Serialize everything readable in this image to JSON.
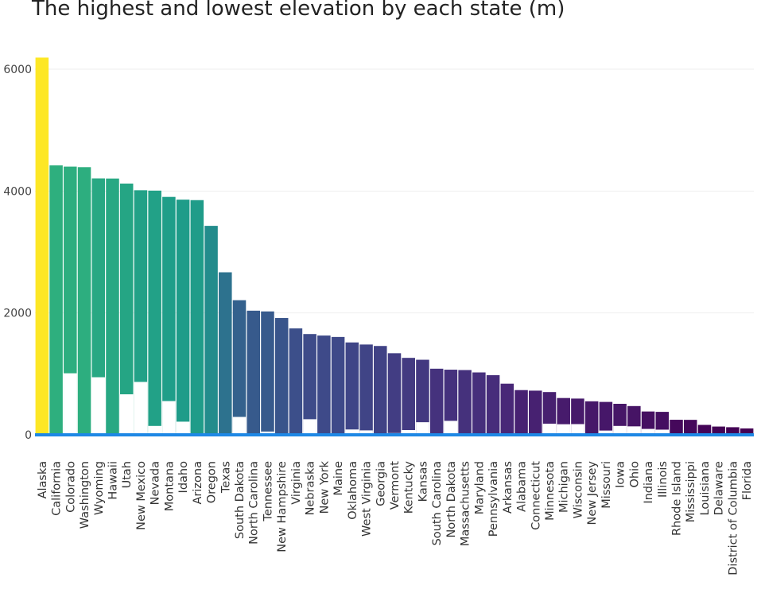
{
  "chart_data": {
    "type": "bar",
    "title": "The highest and lowest elevation by each state (m)",
    "xlabel": "",
    "ylabel": "",
    "ylim": [
      0,
      6200
    ],
    "yticks": [
      0,
      2000,
      4000,
      6000
    ],
    "grid": true,
    "legend": "none",
    "colorscale": "viridis",
    "zero_line_color": "#1e88e5",
    "categories": [
      "Alaska",
      "California",
      "Colorado",
      "Washington",
      "Wyoming",
      "Hawaii",
      "Utah",
      "New Mexico",
      "Nevada",
      "Montana",
      "Idaho",
      "Arizona",
      "Oregon",
      "Texas",
      "South Dakota",
      "North Carolina",
      "Tennessee",
      "New Hampshire",
      "Virginia",
      "Nebraska",
      "New York",
      "Maine",
      "Oklahoma",
      "West Virginia",
      "Georgia",
      "Vermont",
      "Kentucky",
      "Kansas",
      "South Carolina",
      "North Dakota",
      "Massachusetts",
      "Maryland",
      "Pennsylvania",
      "Arkansas",
      "Alabama",
      "Connecticut",
      "Minnesota",
      "Michigan",
      "Wisconsin",
      "New Jersey",
      "Missouri",
      "Iowa",
      "Ohio",
      "Indiana",
      "Illinois",
      "Rhode Island",
      "Mississippi",
      "Louisiana",
      "Delaware",
      "District of Columbia",
      "Florida"
    ],
    "series": [
      {
        "values": [
          6190,
          4421,
          4401,
          4392,
          4207,
          4205,
          4123,
          4013,
          4007,
          3904,
          3859,
          3851,
          3429,
          2667,
          2209,
          2037,
          2025,
          1917,
          1746,
          1654,
          1629,
          1606,
          1516,
          1482,
          1458,
          1339,
          1263,
          1232,
          1085,
          1069,
          1063,
          1024,
          979,
          839,
          734,
          725,
          702,
          604,
          595,
          550,
          540,
          509,
          472,
          383,
          377,
          247,
          246,
          163,
          136,
          125,
          105
        ]
      },
      {
        "name_hint": "lowest elevation (white segments)",
        "values": [
          0,
          0,
          1010,
          0,
          945,
          0,
          665,
          868,
          146,
          554,
          216,
          0,
          0,
          0,
          294,
          0,
          54,
          0,
          0,
          256,
          0,
          0,
          88,
          73,
          0,
          29,
          78,
          207,
          0,
          229,
          0,
          0,
          0,
          17,
          0,
          0,
          183,
          174,
          176,
          0,
          70,
          146,
          139,
          97,
          85,
          0,
          0,
          0,
          0,
          0,
          0
        ]
      }
    ]
  }
}
